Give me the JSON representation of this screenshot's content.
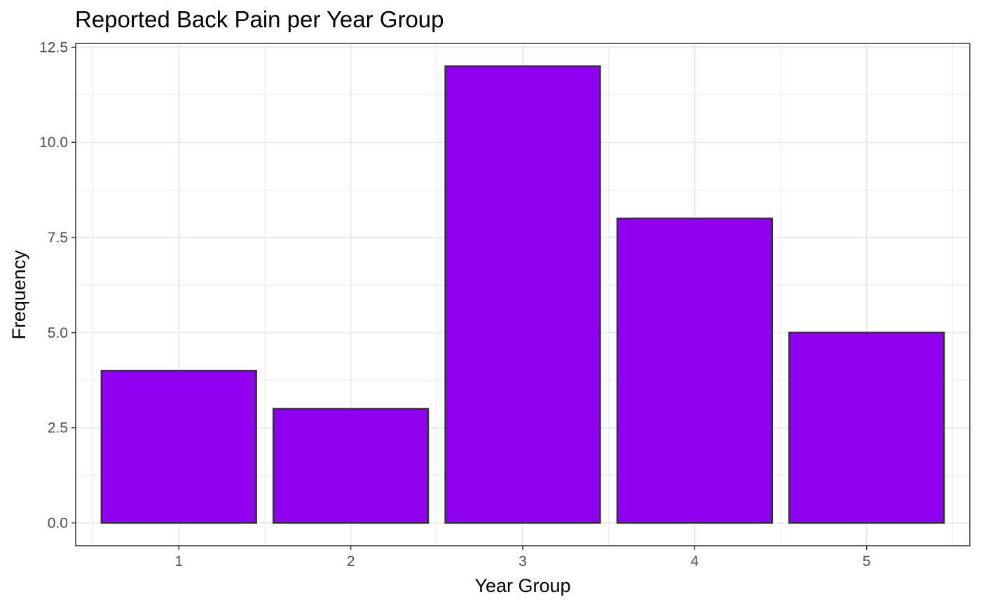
{
  "chart_data": {
    "type": "bar",
    "title": "Reported Back Pain per Year Group",
    "xlabel": "Year Group",
    "ylabel": "Frequency",
    "categories": [
      "1",
      "2",
      "3",
      "4",
      "5"
    ],
    "values": [
      4,
      3,
      12,
      8,
      5
    ],
    "ylim": [
      -0.6,
      12.6
    ],
    "yticks": [
      0,
      2.5,
      5,
      7.5,
      10,
      12.5
    ],
    "ytick_labels": [
      "0.0",
      "2.5",
      "5.0",
      "7.5",
      "10.0",
      "12.5"
    ],
    "grid": true,
    "legend": "none",
    "bar_color": "#8f00f0",
    "bar_outline_color": "#333333"
  }
}
